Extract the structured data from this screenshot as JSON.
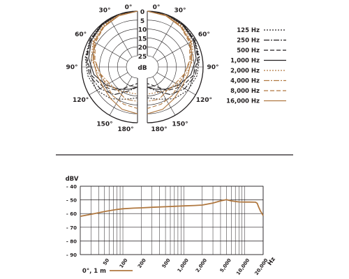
{
  "polar_panel": {
    "angle_labels": [
      "0°",
      "30°",
      "60°",
      "90°",
      "120°",
      "150°",
      "180°"
    ],
    "db_labels": [
      "0",
      "5",
      "10",
      "15",
      "20",
      "25"
    ],
    "db_unit": "dB"
  },
  "divider": true,
  "chart_data": [
    {
      "type": "polar",
      "ring_values_db": [
        0,
        5,
        10,
        15,
        20,
        25
      ],
      "angle_ticks_deg": [
        0,
        30,
        60,
        90,
        120,
        150,
        180
      ],
      "r_unit": "dB",
      "series": [
        {
          "name": "125 Hz",
          "color": "#231f20",
          "dash": "2,2",
          "theta": [
            0,
            20,
            40,
            60,
            80,
            100,
            120,
            140,
            160,
            180
          ],
          "r": [
            0,
            0,
            0,
            0.5,
            1.5,
            3,
            5,
            8,
            12,
            14
          ]
        },
        {
          "name": "250 Hz",
          "color": "#231f20",
          "dash": "8,2,2,2",
          "theta": [
            0,
            20,
            40,
            60,
            80,
            100,
            120,
            140,
            160,
            180
          ],
          "r": [
            0,
            0,
            0.2,
            0.8,
            2,
            4,
            7,
            11,
            17,
            20
          ]
        },
        {
          "name": "500 Hz",
          "color": "#231f20",
          "dash": "6,3",
          "theta": [
            0,
            20,
            40,
            60,
            80,
            100,
            120,
            140,
            160,
            180
          ],
          "r": [
            0,
            0,
            0.3,
            1,
            2.5,
            5,
            9,
            14,
            20,
            22
          ]
        },
        {
          "name": "1,000 Hz",
          "color": "#231f20",
          "dash": "",
          "theta": [
            0,
            20,
            40,
            60,
            80,
            100,
            120,
            140,
            160,
            180
          ],
          "r": [
            0,
            0,
            0.5,
            1.5,
            3.5,
            6.5,
            11,
            15,
            18,
            20
          ]
        },
        {
          "name": "2,000 Hz",
          "color": "#b07840",
          "dash": "2,2",
          "theta": [
            0,
            20,
            40,
            60,
            80,
            100,
            120,
            140,
            160,
            180
          ],
          "r": [
            0,
            0.3,
            1,
            2.5,
            5,
            9,
            12,
            14,
            16,
            16
          ]
        },
        {
          "name": "4,000 Hz",
          "color": "#b07840",
          "dash": "8,2,2,2",
          "theta": [
            0,
            20,
            40,
            60,
            80,
            100,
            120,
            140,
            160,
            180
          ],
          "r": [
            0,
            0.5,
            1.5,
            3.5,
            6.5,
            10,
            13,
            14,
            12,
            12
          ]
        },
        {
          "name": "8,000 Hz",
          "color": "#b07840",
          "dash": "6,3",
          "theta": [
            0,
            20,
            40,
            60,
            80,
            100,
            120,
            140,
            160,
            180
          ],
          "r": [
            0,
            0.5,
            2,
            4,
            7,
            10,
            11,
            10,
            9,
            8
          ]
        },
        {
          "name": "16,000 Hz",
          "color": "#b07840",
          "dash": "",
          "theta": [
            0,
            20,
            40,
            60,
            80,
            100,
            120,
            140,
            160,
            180
          ],
          "r": [
            0,
            0.8,
            2,
            3,
            6,
            8,
            9,
            8,
            6,
            5
          ]
        }
      ]
    },
    {
      "type": "line",
      "x_scale": "log",
      "xlim": [
        20,
        20000
      ],
      "ylim": [
        -90,
        -40
      ],
      "ylabel": "dBV",
      "xlabel": "Hz",
      "x_tick_labels": [
        "50",
        "100",
        "200",
        "500",
        "1,000",
        "2,000",
        "5,000",
        "10,000",
        "20,000"
      ],
      "x_tick_values": [
        50,
        100,
        200,
        500,
        1000,
        2000,
        5000,
        10000,
        20000
      ],
      "y_tick_labels": [
        "- 40",
        "- 50",
        "- 60",
        "- 70",
        "- 80",
        "- 90"
      ],
      "y_tick_values": [
        -40,
        -50,
        -60,
        -70,
        -80,
        -90
      ],
      "grid": true,
      "legend_position": "bottom-left",
      "series": [
        {
          "name": "0°, 1 m",
          "color": "#b07840",
          "x": [
            20,
            30,
            50,
            80,
            100,
            150,
            200,
            300,
            500,
            700,
            1000,
            1500,
            2000,
            3000,
            4000,
            5000,
            6000,
            8000,
            10000,
            12000,
            15000,
            16000,
            17000,
            18000,
            19000,
            20000
          ],
          "y": [
            -62,
            -60.5,
            -58.5,
            -57,
            -56.5,
            -56,
            -55.8,
            -55.4,
            -55,
            -54.7,
            -54.4,
            -54.1,
            -53.8,
            -52.3,
            -50.7,
            -49.8,
            -50.7,
            -51.5,
            -51.6,
            -51.6,
            -51.7,
            -52.5,
            -55.5,
            -58,
            -59.8,
            -61.5
          ]
        }
      ]
    }
  ]
}
